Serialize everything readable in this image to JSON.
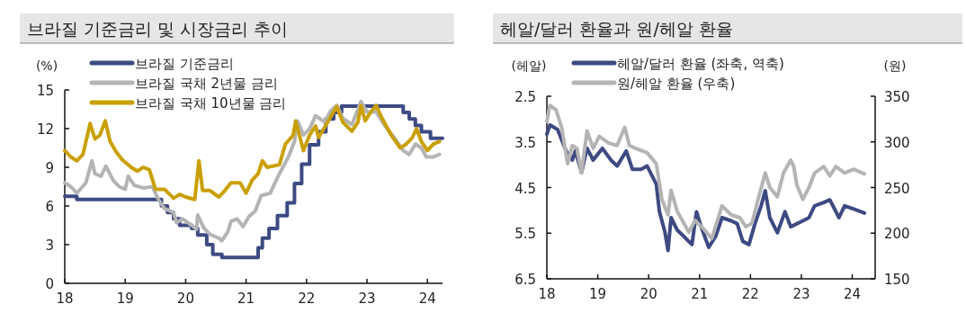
{
  "chart_data": [
    {
      "type": "line",
      "title": "브라질 기준금리 및 시장금리 추이",
      "ylabel": "(%)",
      "xlim": [
        18,
        24.25
      ],
      "xticks": [
        18,
        19,
        20,
        21,
        22,
        23,
        24
      ],
      "ylim": [
        0,
        15
      ],
      "yticks": [
        0,
        3,
        6,
        9,
        12,
        15
      ],
      "grid": false,
      "legend": "top left",
      "line_style": "solid",
      "marker": "none",
      "series": [
        {
          "name": "브라질 기준금리",
          "type": "step",
          "color": "#3d4a82",
          "x": [
            18.0,
            18.2,
            19.6,
            19.7,
            19.8,
            19.9,
            20.1,
            20.2,
            20.35,
            20.45,
            20.6,
            21.2,
            21.27,
            21.38,
            21.52,
            21.68,
            21.8,
            21.92,
            22.05,
            22.2,
            22.32,
            22.45,
            22.58,
            23.6,
            23.7,
            23.8,
            23.9,
            24.05,
            24.25
          ],
          "values": [
            6.75,
            6.5,
            6.0,
            5.5,
            5.0,
            4.5,
            4.25,
            3.75,
            3.0,
            2.25,
            2.0,
            2.75,
            3.5,
            4.25,
            5.25,
            6.25,
            7.75,
            9.25,
            10.75,
            11.75,
            12.75,
            13.25,
            13.75,
            13.25,
            12.75,
            12.25,
            11.75,
            11.25,
            11.25
          ]
        },
        {
          "name": "브라질 국채 2년물 금리",
          "type": "line",
          "color": "#b4b4b4",
          "x": [
            18.0,
            18.1,
            18.2,
            18.35,
            18.45,
            18.5,
            18.6,
            18.68,
            18.8,
            18.9,
            19.0,
            19.05,
            19.15,
            19.3,
            19.45,
            19.55,
            19.65,
            19.8,
            19.85,
            19.95,
            20.1,
            20.18,
            20.2,
            20.3,
            20.4,
            20.55,
            20.6,
            20.7,
            20.75,
            20.85,
            20.95,
            21.05,
            21.15,
            21.25,
            21.4,
            21.55,
            21.7,
            21.8,
            21.85,
            21.95,
            22.05,
            22.15,
            22.3,
            22.4,
            22.5,
            22.6,
            22.75,
            22.9,
            23.0,
            23.15,
            23.3,
            23.45,
            23.6,
            23.7,
            23.8,
            23.9,
            23.98,
            24.1,
            24.2
          ],
          "values": [
            7.8,
            7.5,
            7.0,
            7.8,
            9.5,
            8.5,
            8.3,
            9.1,
            8.0,
            7.5,
            7.3,
            8.3,
            7.6,
            7.4,
            7.5,
            6.5,
            5.8,
            5.5,
            4.7,
            5.0,
            4.5,
            4.2,
            5.3,
            4.3,
            3.8,
            3.5,
            3.3,
            4.0,
            4.8,
            5.0,
            4.4,
            5.2,
            5.6,
            6.8,
            7.0,
            8.5,
            9.8,
            11.0,
            12.6,
            11.5,
            12.0,
            13.0,
            12.5,
            13.4,
            13.8,
            12.8,
            12.3,
            14.1,
            13.3,
            13.3,
            12.2,
            11.3,
            10.3,
            10.0,
            10.8,
            10.5,
            9.8,
            9.8,
            10.0
          ]
        },
        {
          "name": "브라질 국채 10년물 금리",
          "type": "line",
          "color": "#c9a000",
          "x": [
            18.0,
            18.1,
            18.2,
            18.3,
            18.42,
            18.5,
            18.58,
            18.67,
            18.75,
            18.85,
            18.95,
            19.1,
            19.2,
            19.3,
            19.4,
            19.5,
            19.65,
            19.8,
            19.9,
            20.0,
            20.15,
            20.22,
            20.28,
            20.4,
            20.55,
            20.65,
            20.75,
            20.9,
            21.0,
            21.1,
            21.2,
            21.27,
            21.35,
            21.55,
            21.65,
            21.78,
            21.82,
            21.95,
            22.05,
            22.15,
            22.2,
            22.35,
            22.5,
            22.6,
            22.75,
            22.85,
            22.9,
            22.97,
            23.05,
            23.15,
            23.25,
            23.4,
            23.55,
            23.65,
            23.75,
            23.82,
            23.9,
            24.0,
            24.1,
            24.2
          ],
          "values": [
            10.3,
            9.8,
            9.5,
            10.0,
            12.4,
            11.2,
            11.5,
            12.6,
            11.0,
            10.2,
            9.6,
            9.0,
            8.7,
            9.0,
            8.8,
            7.3,
            7.3,
            6.6,
            6.9,
            6.7,
            6.5,
            9.5,
            7.2,
            7.2,
            6.7,
            7.2,
            7.8,
            7.8,
            7.0,
            8.0,
            8.5,
            9.5,
            9.0,
            9.2,
            10.8,
            11.5,
            12.6,
            10.3,
            11.5,
            12.2,
            11.3,
            12.5,
            13.7,
            12.5,
            11.8,
            12.5,
            13.8,
            12.6,
            13.2,
            13.8,
            12.8,
            11.5,
            10.5,
            10.8,
            11.3,
            12.0,
            11.0,
            10.3,
            10.8,
            11.0
          ]
        }
      ]
    },
    {
      "type": "line",
      "title": "헤알/달러 환율과 원/헤알 환율",
      "ylabel": "(헤알)",
      "y2label": "(원)",
      "xlim": [
        18,
        24.45
      ],
      "xticks": [
        18,
        19,
        20,
        21,
        22,
        23,
        24
      ],
      "ylim": [
        6.5,
        2.5
      ],
      "yticks": [
        2.5,
        3.5,
        4.5,
        5.5,
        6.5
      ],
      "y2lim": [
        150,
        350
      ],
      "y2ticks": [
        150,
        200,
        250,
        300,
        350
      ],
      "grid": false,
      "legend": "top left",
      "line_style": "solid",
      "marker": "none",
      "series": [
        {
          "name": "헤알/달러 환율 (좌축, 역축)",
          "color": "#3d4a82",
          "x": [
            18.0,
            18.06,
            18.21,
            18.38,
            18.5,
            18.56,
            18.68,
            18.79,
            18.91,
            19.09,
            19.26,
            19.38,
            19.56,
            19.68,
            19.85,
            19.97,
            20.15,
            20.21,
            20.32,
            20.38,
            20.44,
            20.56,
            20.68,
            20.85,
            20.94,
            21.03,
            21.18,
            21.32,
            21.44,
            21.62,
            21.74,
            21.85,
            21.97,
            22.09,
            22.21,
            22.29,
            22.38,
            22.53,
            22.68,
            22.79,
            23.03,
            23.15,
            23.26,
            23.44,
            23.56,
            23.74,
            23.85,
            24.03,
            24.24
          ],
          "values": [
            3.33,
            3.13,
            3.23,
            3.7,
            3.9,
            3.7,
            4.17,
            3.64,
            3.9,
            3.64,
            3.9,
            4.03,
            3.7,
            4.1,
            4.1,
            4.03,
            4.43,
            5.02,
            5.48,
            5.88,
            5.16,
            5.43,
            5.56,
            5.75,
            5.03,
            5.36,
            5.81,
            5.56,
            5.16,
            5.23,
            5.29,
            5.68,
            5.75,
            5.29,
            4.9,
            4.57,
            5.16,
            5.49,
            5.03,
            5.36,
            5.23,
            5.16,
            4.9,
            4.83,
            4.77,
            5.16,
            4.9,
            4.97,
            5.06
          ]
        },
        {
          "name": "원/헤알 환율 (우축)",
          "axis": "y2",
          "color": "#b4b4b4",
          "x": [
            18.0,
            18.06,
            18.18,
            18.29,
            18.41,
            18.5,
            18.59,
            18.68,
            18.79,
            18.91,
            19.03,
            19.21,
            19.38,
            19.53,
            19.62,
            19.74,
            19.97,
            20.15,
            20.26,
            20.38,
            20.44,
            20.56,
            20.79,
            20.91,
            21.09,
            21.24,
            21.44,
            21.62,
            21.79,
            21.91,
            22.03,
            22.15,
            22.29,
            22.38,
            22.53,
            22.65,
            22.79,
            22.85,
            22.91,
            23.03,
            23.15,
            23.26,
            23.44,
            23.56,
            23.68,
            23.85,
            24.03,
            24.24
          ],
          "values": [
            322,
            340,
            335,
            316,
            276,
            296,
            293,
            266,
            312,
            293,
            306,
            299,
            296,
            316,
            296,
            293,
            288,
            276,
            237,
            220,
            247,
            224,
            201,
            214,
            204,
            194,
            230,
            220,
            217,
            207,
            211,
            237,
            266,
            250,
            240,
            266,
            280,
            273,
            253,
            237,
            250,
            266,
            273,
            263,
            273,
            266,
            270,
            265
          ]
        }
      ]
    }
  ]
}
